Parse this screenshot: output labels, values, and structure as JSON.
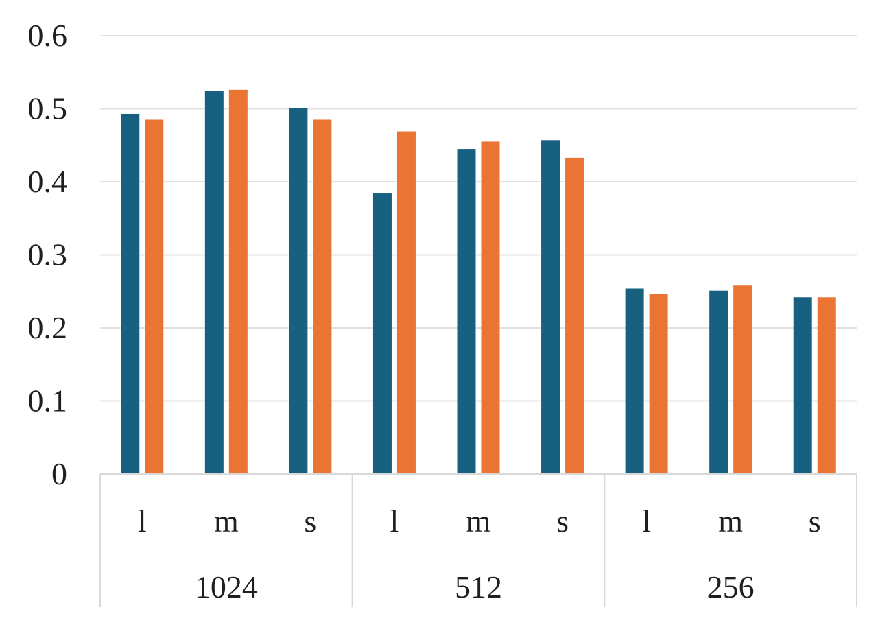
{
  "chart_data": {
    "type": "bar",
    "title": "",
    "xlabel": "",
    "ylabel": "",
    "ylim": [
      0,
      0.6
    ],
    "yticks": [
      "0",
      "0.1",
      "0.2",
      "0.3",
      "0.4",
      "0.5",
      "0.6"
    ],
    "grid": true,
    "legend": "none",
    "groups": [
      "1024",
      "512",
      "256"
    ],
    "subcategories": [
      "l",
      "m",
      "s"
    ],
    "categories": [
      "1024-l",
      "1024-m",
      "1024-s",
      "512-l",
      "512-m",
      "512-s",
      "256-l",
      "256-m",
      "256-s"
    ],
    "series": [
      {
        "values": [
          0.493,
          0.524,
          0.501,
          0.384,
          0.445,
          0.457,
          0.254,
          0.251,
          0.242
        ],
        "color": "#17607F"
      },
      {
        "values": [
          0.485,
          0.526,
          0.485,
          0.469,
          0.455,
          0.433,
          0.246,
          0.258,
          0.242
        ],
        "color": "#EA7434"
      }
    ]
  }
}
